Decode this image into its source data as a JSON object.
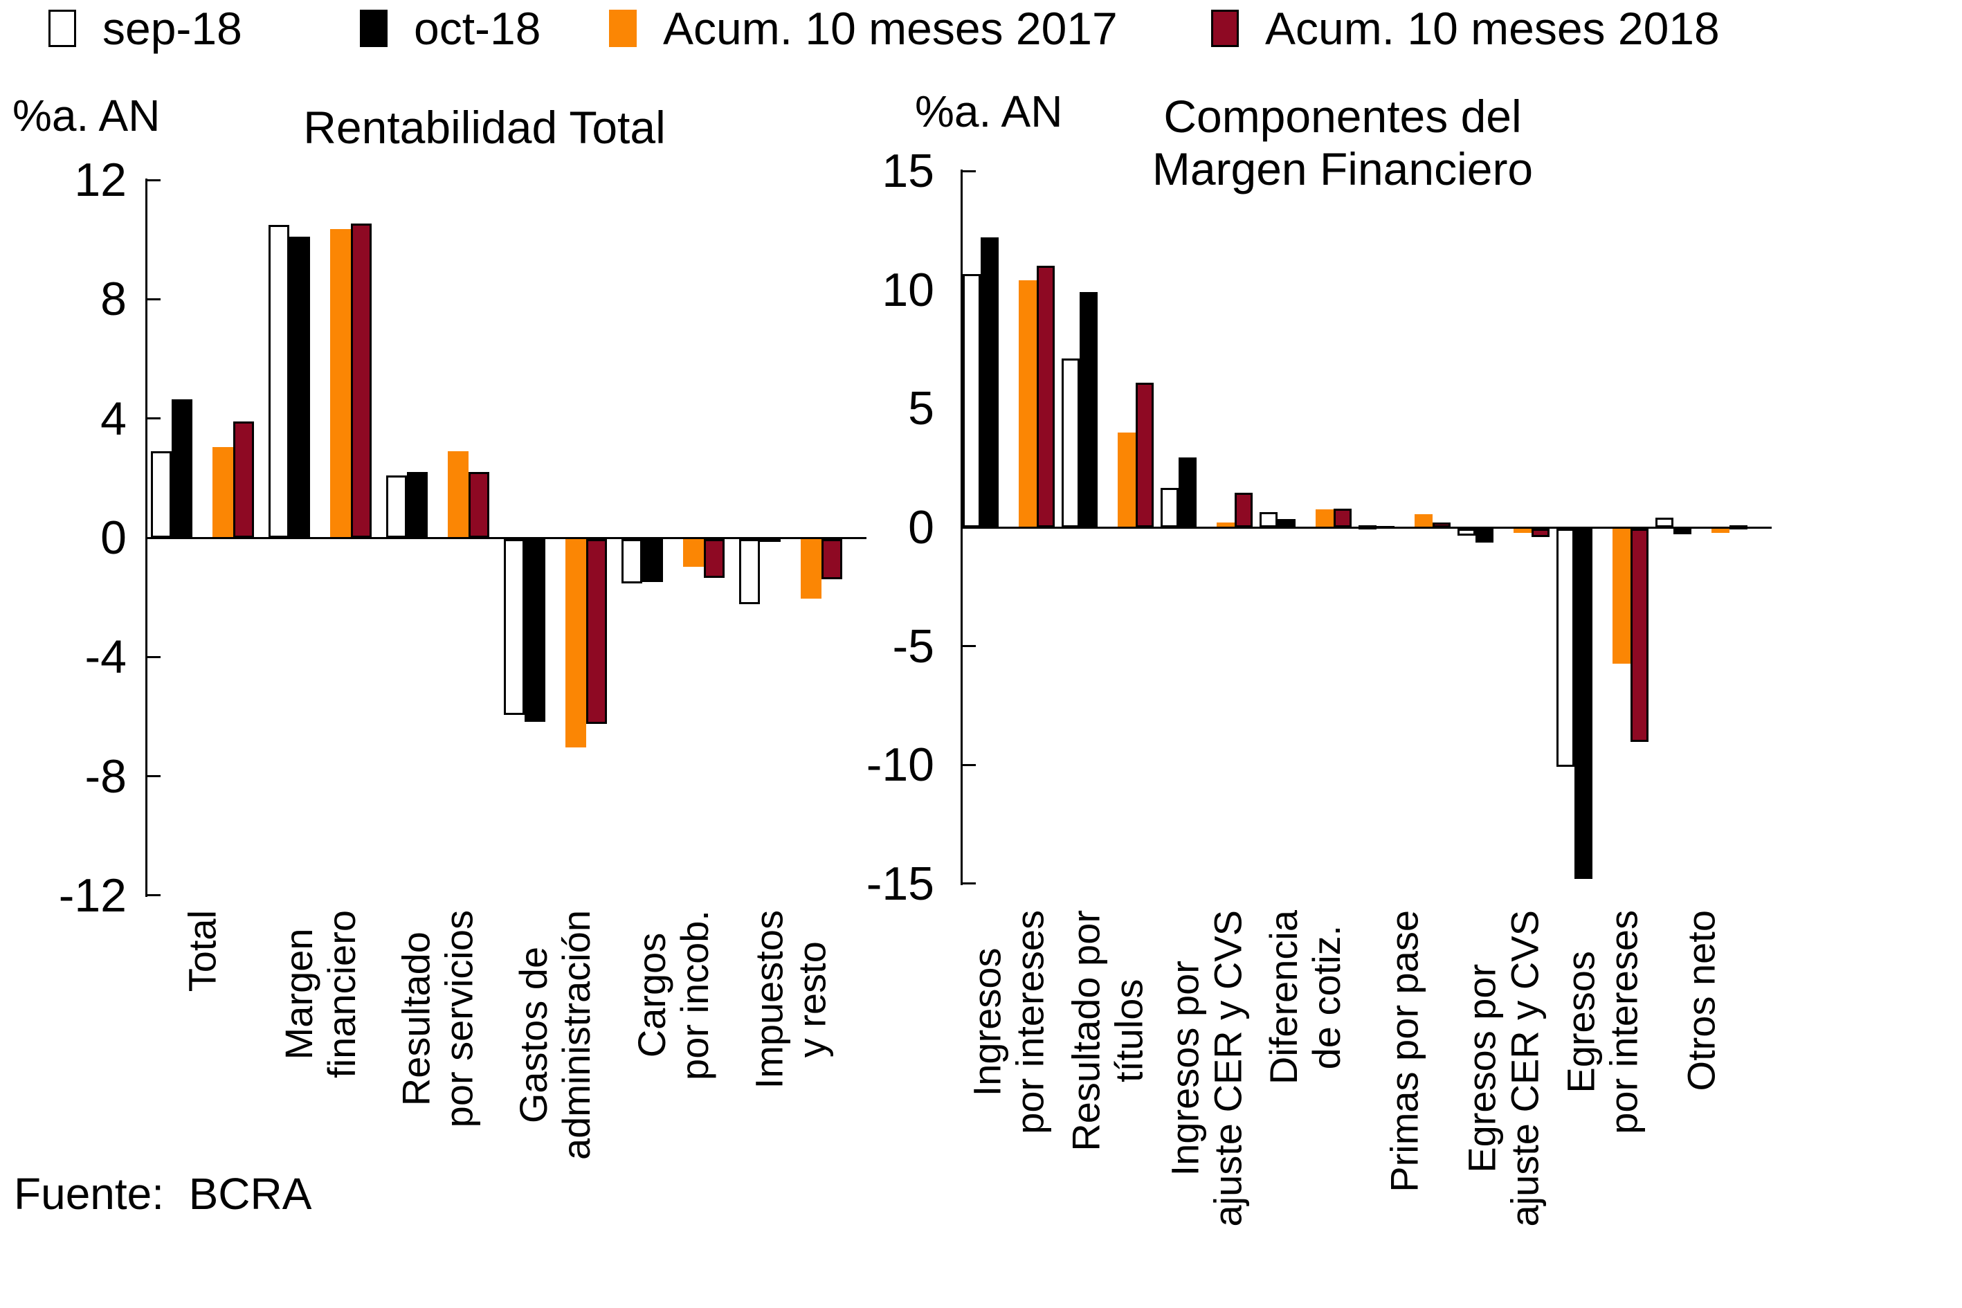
{
  "page": {
    "background": "#FFFFFF"
  },
  "legend": {
    "position": "top",
    "items": [
      {
        "label": "sep-18",
        "fill": "#FFFFFF",
        "outlined": true
      },
      {
        "label": "oct-18",
        "fill": "#000000",
        "outlined": false
      },
      {
        "label": "Acum. 10 meses 2017",
        "fill": "#FB8604",
        "outlined": false
      },
      {
        "label": "Acum. 10 meses 2018",
        "fill": "#8E0923",
        "outlined": true
      }
    ]
  },
  "footer": {
    "text": "Fuente:  BCRA"
  },
  "chart_data": [
    {
      "type": "bar",
      "title": "Rentabilidad Total",
      "unit_label": "%a. AN",
      "ylim": [
        -12,
        12
      ],
      "ytick_step": 4,
      "grid": false,
      "legend_position": "top-shared",
      "categories": [
        [
          "Total"
        ],
        [
          "Margen",
          "financiero"
        ],
        [
          "Resultado",
          "por servicios"
        ],
        [
          "Gastos de",
          "administración"
        ],
        [
          "Cargos",
          "por incob."
        ],
        [
          "Impuestos",
          "y resto"
        ]
      ],
      "series": [
        {
          "name": "sep-18",
          "color": "#FFFFFF",
          "outlined": true,
          "values": [
            2.9,
            10.5,
            2.1,
            -5.9,
            -1.5,
            -2.2
          ]
        },
        {
          "name": "oct-18",
          "color": "#000000",
          "outlined": false,
          "values": [
            4.65,
            10.1,
            2.2,
            -6.15,
            -1.45,
            -0.1
          ]
        },
        {
          "name": "Acum. 10 meses 2017",
          "color": "#FB8604",
          "outlined": false,
          "values": [
            3.05,
            10.35,
            2.9,
            -7.0,
            -0.95,
            -2.0
          ]
        },
        {
          "name": "Acum. 10 meses 2018",
          "color": "#8E0923",
          "outlined": true,
          "values": [
            3.9,
            10.55,
            2.2,
            -6.2,
            -1.3,
            -1.35
          ]
        }
      ]
    },
    {
      "type": "bar",
      "title": [
        "Componentes del",
        "Margen Financiero"
      ],
      "unit_label": "%a. AN",
      "ylim": [
        -15,
        15
      ],
      "ytick_step": 5,
      "grid": false,
      "legend_position": "top-shared",
      "categories": [
        [
          "Ingresos",
          "por intereses"
        ],
        [
          "Resultado por",
          "títulos"
        ],
        [
          "Ingresos por",
          "ajuste CER y CVS"
        ],
        [
          "Diferencia",
          "de cotiz."
        ],
        [
          "Primas por pase"
        ],
        [
          "Egresos por",
          "ajuste CER y CVS"
        ],
        [
          "Egresos",
          "por intereses"
        ],
        [
          "Otros neto"
        ]
      ],
      "series": [
        {
          "name": "sep-18",
          "color": "#FFFFFF",
          "outlined": true,
          "values": [
            10.65,
            7.1,
            1.65,
            0.65,
            0.1,
            -0.3,
            -10.05,
            0.4
          ]
        },
        {
          "name": "oct-18",
          "color": "#000000",
          "outlined": false,
          "values": [
            12.2,
            9.9,
            2.95,
            0.35,
            0.05,
            -0.6,
            -14.75,
            -0.25
          ]
        },
        {
          "name": "Acum. 10 meses 2017",
          "color": "#FB8604",
          "outlined": false,
          "values": [
            10.4,
            4.0,
            0.2,
            0.75,
            0.55,
            -0.2,
            -5.7,
            -0.2
          ]
        },
        {
          "name": "Acum. 10 meses 2018",
          "color": "#8E0923",
          "outlined": true,
          "values": [
            11.0,
            6.1,
            1.45,
            0.8,
            0.2,
            -0.35,
            -9.0,
            0.1
          ]
        }
      ]
    }
  ]
}
